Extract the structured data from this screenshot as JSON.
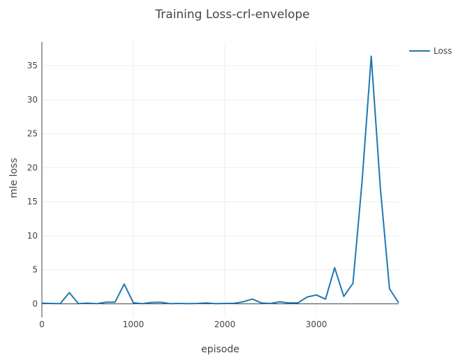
{
  "chart_data": {
    "type": "line",
    "title": "Training Loss-crl-envelope",
    "xlabel": "episode",
    "ylabel": "mle loss",
    "xlim": [
      0,
      3900
    ],
    "ylim": [
      -2,
      38.5
    ],
    "x_ticks": [
      0,
      1000,
      2000,
      3000
    ],
    "x_tick_labels": [
      "0",
      "1000",
      "2000",
      "3000"
    ],
    "y_ticks": [
      0,
      5,
      10,
      15,
      20,
      25,
      30,
      35
    ],
    "y_tick_labels": [
      "0",
      "5",
      "10",
      "15",
      "20",
      "25",
      "30",
      "35"
    ],
    "grid": true,
    "legend_position": "top-right",
    "colors": {
      "series": "#1f77b4",
      "grid": "#eeeeee",
      "axis": "#444444"
    },
    "series": [
      {
        "name": "Loss",
        "x": [
          0,
          100,
          200,
          300,
          400,
          500,
          600,
          700,
          800,
          900,
          1000,
          1100,
          1200,
          1300,
          1400,
          1500,
          1600,
          1700,
          1800,
          1900,
          2000,
          2100,
          2200,
          2300,
          2400,
          2500,
          2600,
          2700,
          2800,
          2900,
          3000,
          3100,
          3200,
          3300,
          3400,
          3500,
          3600,
          3700,
          3800,
          3900
        ],
        "values": [
          0.1,
          0.05,
          0.02,
          1.65,
          0.02,
          0.1,
          0.02,
          0.25,
          0.25,
          2.9,
          0.15,
          0.02,
          0.2,
          0.22,
          0.02,
          0.05,
          0.02,
          0.05,
          0.12,
          0.02,
          0.05,
          0.08,
          0.3,
          0.7,
          0.12,
          0.05,
          0.3,
          0.12,
          0.15,
          1.0,
          1.3,
          0.7,
          5.3,
          1.1,
          3.0,
          18.0,
          36.4,
          17.0,
          2.2,
          0.15
        ]
      }
    ]
  }
}
